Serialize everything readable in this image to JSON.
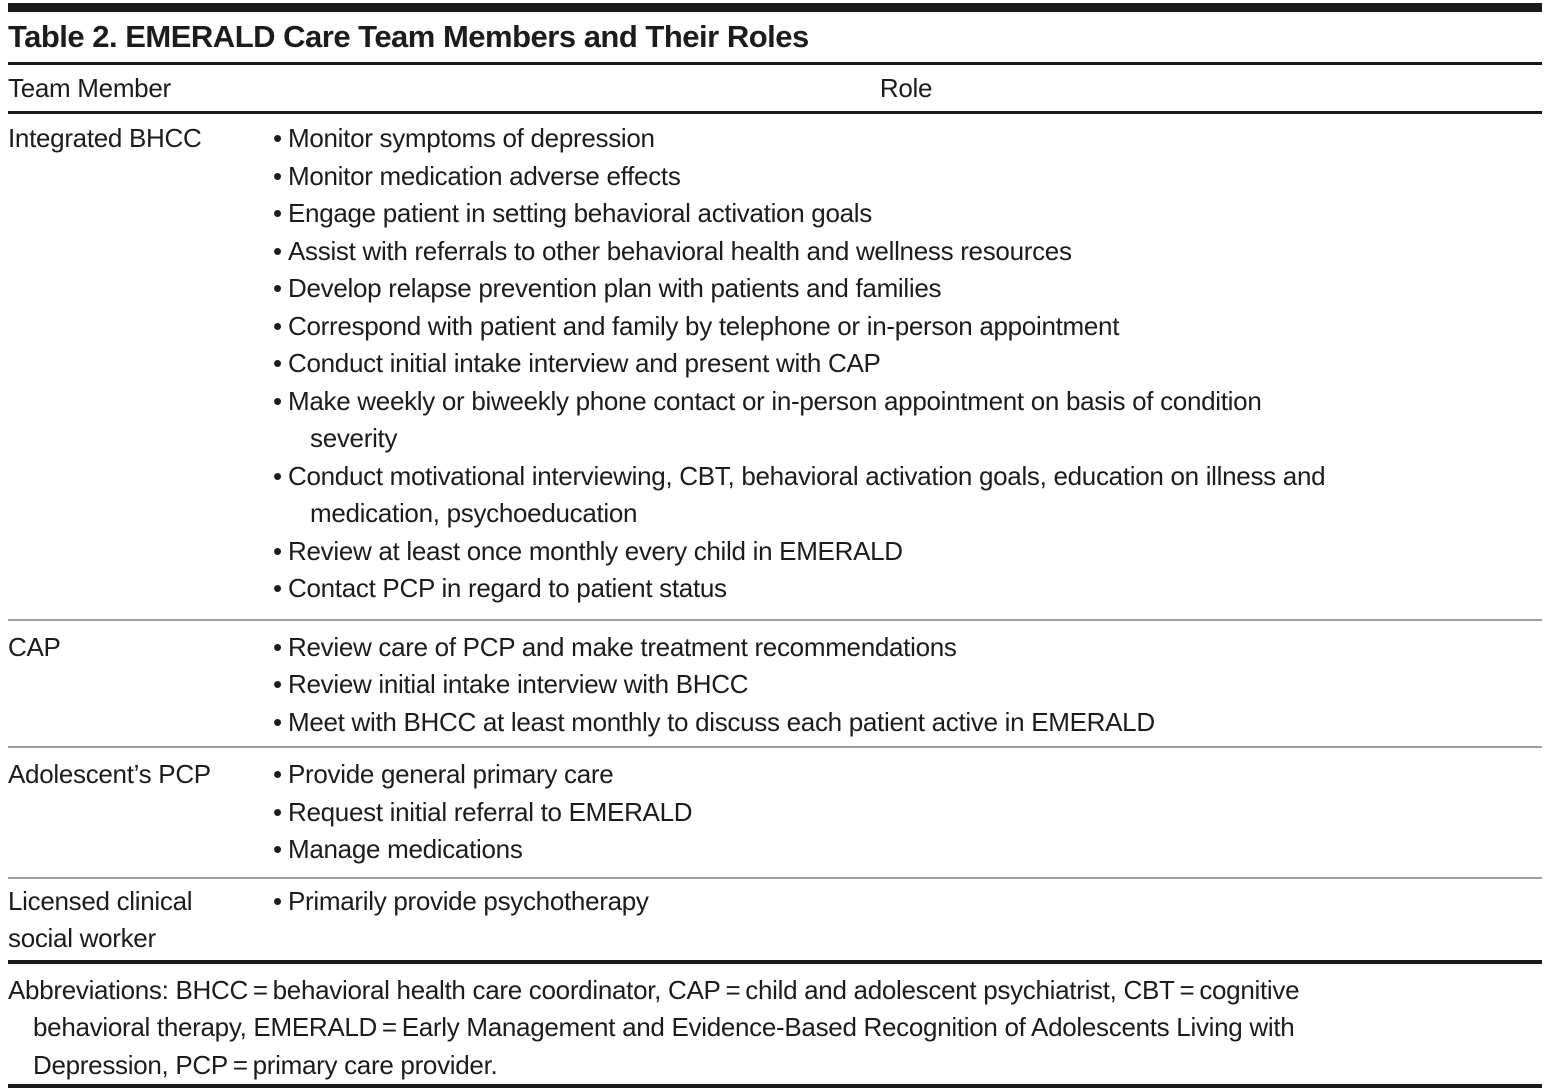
{
  "title": "Table 2. EMERALD Care Team Members and Their Roles",
  "columns": {
    "team_member": "Team Member",
    "role": "Role"
  },
  "bullet_glyph": "•",
  "rows": [
    {
      "member_lines": [
        "Integrated BHCC"
      ],
      "bullets": [
        {
          "lines": [
            "Monitor symptoms of depression"
          ]
        },
        {
          "lines": [
            "Monitor medication adverse effects"
          ]
        },
        {
          "lines": [
            "Engage patient in setting behavioral activation goals"
          ]
        },
        {
          "lines": [
            "Assist with referrals to other behavioral health and wellness resources"
          ]
        },
        {
          "lines": [
            "Develop relapse prevention plan with patients and families"
          ]
        },
        {
          "lines": [
            "Correspond with patient and family by telephone or in-person appointment"
          ]
        },
        {
          "lines": [
            "Conduct initial intake interview and present with CAP"
          ]
        },
        {
          "lines": [
            "Make weekly or biweekly phone contact or in-person appointment on basis of condition",
            "severity"
          ]
        },
        {
          "lines": [
            "Conduct motivational interviewing, CBT, behavioral activation goals, education on illness and",
            "medication, psychoeducation"
          ]
        },
        {
          "lines": [
            "Review at least once monthly every child in EMERALD"
          ]
        },
        {
          "lines": [
            "Contact PCP in regard to patient status"
          ]
        }
      ]
    },
    {
      "member_lines": [
        "CAP"
      ],
      "bullets": [
        {
          "lines": [
            "Review care of PCP and make treatment recommendations"
          ]
        },
        {
          "lines": [
            "Review initial intake interview with BHCC"
          ]
        },
        {
          "lines": [
            "Meet with BHCC at least monthly to discuss each patient active in EMERALD"
          ]
        }
      ]
    },
    {
      "member_lines": [
        "Adolescent’s PCP"
      ],
      "bullets": [
        {
          "lines": [
            "Provide general primary care"
          ]
        },
        {
          "lines": [
            "Request initial referral to EMERALD"
          ]
        },
        {
          "lines": [
            "Manage medications"
          ]
        }
      ]
    },
    {
      "member_lines": [
        "Licensed clinical",
        "social worker"
      ],
      "bullets": [
        {
          "lines": [
            "Primarily provide psychotherapy"
          ]
        }
      ]
    }
  ],
  "footnote_lines": [
    "Abbreviations: BHCC = behavioral health care coordinator, CAP = child and adolescent psychiatrist, CBT = cognitive",
    "behavioral therapy, EMERALD = Early Management and Evidence-Based Recognition of Adolescents Living with",
    "Depression, PCP = primary care provider."
  ],
  "colors": {
    "text": "#1c1c1c",
    "rule_black": "#1a1a1a",
    "rule_gray": "#9e9e9e",
    "background": "#ffffff"
  }
}
